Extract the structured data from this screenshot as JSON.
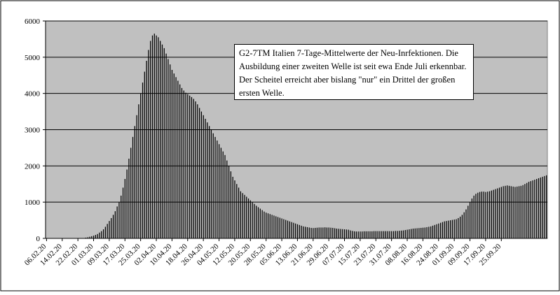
{
  "chart_data": {
    "type": "bar",
    "annotation": "G2-7TM Italien 7-Tage-Mittelwerte der Neu-Inrfektionen. Die Ausbildung einer zweiten Welle ist seit ewa Ende Juli erkennbar. Der Scheitel erreicht aber bislang \"nur\" ein Drittel der großen ersten Welle.",
    "x_tick_labels": [
      "06.02.20",
      "14.02.20",
      "22.02.20",
      "01.03.20",
      "09.03.20",
      "17.03.20",
      "25.03.20",
      "02.04.20",
      "10.04.20",
      "18.04.20",
      "26.04.20",
      "04.05.20",
      "12.05.20",
      "20.05.20",
      "28.05.20",
      "05.06.20",
      "13.06.20",
      "21.06.20",
      "29.06.20",
      "07.07.20",
      "15.07.20",
      "23.07.20",
      "31.07.20",
      "08.08.20",
      "16.08.20",
      "24.08.20",
      "01.09.20",
      "09.09.20",
      "17.09.20",
      "25.09.20"
    ],
    "y_tick_labels": [
      "0",
      "1000",
      "2000",
      "3000",
      "4000",
      "5000",
      "6000"
    ],
    "ylim": [
      0,
      6000
    ],
    "grid": true,
    "colors": {
      "plot_bg": "#c0c0c0",
      "bar": "#000000",
      "grid": "#000000"
    },
    "x_start": "2020-02-06",
    "values": [
      0,
      0,
      0,
      0,
      0,
      0,
      0,
      0,
      0,
      0,
      0,
      0,
      0,
      0,
      0,
      0,
      0,
      0,
      2,
      8,
      20,
      30,
      45,
      60,
      75,
      95,
      120,
      160,
      200,
      250,
      320,
      400,
      480,
      560,
      650,
      750,
      880,
      1000,
      1180,
      1400,
      1640,
      1900,
      2200,
      2500,
      2800,
      3100,
      3400,
      3700,
      4000,
      4300,
      4600,
      4900,
      5200,
      5450,
      5600,
      5650,
      5600,
      5550,
      5450,
      5350,
      5250,
      5100,
      4950,
      4800,
      4650,
      4550,
      4450,
      4350,
      4250,
      4150,
      4080,
      4020,
      3980,
      3940,
      3900,
      3850,
      3780,
      3700,
      3600,
      3500,
      3400,
      3300,
      3200,
      3100,
      3000,
      2900,
      2800,
      2700,
      2600,
      2500,
      2400,
      2300,
      2150,
      2000,
      1850,
      1700,
      1600,
      1500,
      1400,
      1300,
      1250,
      1200,
      1150,
      1100,
      1050,
      1000,
      950,
      900,
      860,
      820,
      780,
      740,
      710,
      690,
      670,
      650,
      630,
      610,
      590,
      570,
      550,
      530,
      510,
      490,
      470,
      450,
      430,
      410,
      390,
      370,
      350,
      330,
      320,
      310,
      300,
      290,
      285,
      290,
      295,
      300,
      300,
      300,
      305,
      300,
      300,
      295,
      290,
      280,
      270,
      265,
      260,
      255,
      250,
      245,
      240,
      220,
      205,
      195,
      190,
      190,
      190,
      190,
      195,
      195,
      195,
      195,
      195,
      200,
      200,
      200,
      200,
      200,
      200,
      200,
      200,
      200,
      200,
      200,
      205,
      205,
      210,
      215,
      220,
      230,
      240,
      250,
      260,
      270,
      275,
      280,
      285,
      290,
      295,
      300,
      310,
      320,
      330,
      350,
      370,
      390,
      410,
      430,
      450,
      470,
      480,
      490,
      500,
      510,
      520,
      530,
      560,
      600,
      650,
      720,
      800,
      900,
      1000,
      1100,
      1180,
      1230,
      1260,
      1280,
      1290,
      1290,
      1280,
      1290,
      1300,
      1320,
      1340,
      1360,
      1380,
      1400,
      1420,
      1440,
      1450,
      1460,
      1450,
      1440,
      1430,
      1420,
      1430,
      1440,
      1450,
      1470,
      1500,
      1530,
      1560,
      1580,
      1600,
      1620,
      1640,
      1660,
      1680,
      1700,
      1720,
      1740
    ]
  }
}
